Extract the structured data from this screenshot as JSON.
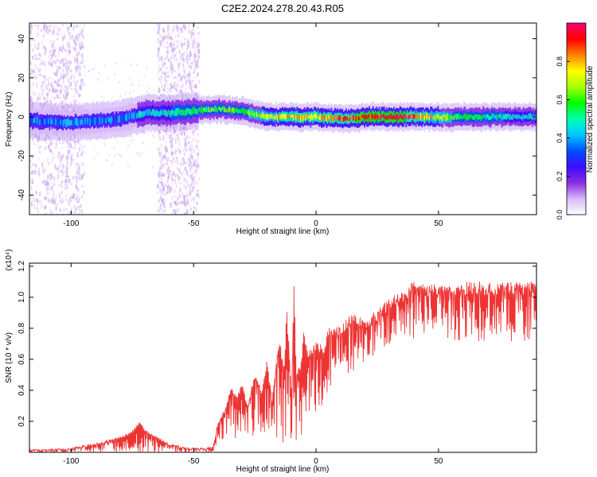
{
  "figure": {
    "title": "C2E2.2024.278.20.43.R05"
  },
  "chart_data": [
    {
      "type": "heatmap",
      "title": "C2E2.2024.278.20.43.R05",
      "xlabel": "Height of straight line (km)",
      "ylabel": "Frequency (Hz)",
      "xlim": [
        -117,
        90
      ],
      "ylim": [
        -50,
        48
      ],
      "xticks": [
        -100,
        -50,
        0,
        50
      ],
      "yticks": [
        -40,
        -20,
        0,
        20,
        40
      ],
      "colorbar": {
        "label": "Normalized spectral amplitude",
        "range": [
          0,
          1
        ],
        "ticks": [
          0.0,
          0.2,
          0.4,
          0.6,
          0.8
        ],
        "colormap": [
          "#ffffff",
          "#d8b8f8",
          "#8a2be2",
          "#3b0bff",
          "#0050ff",
          "#00c8ff",
          "#00ffb0",
          "#00ff00",
          "#a8ff00",
          "#ffff00",
          "#ff8000",
          "#ff0000",
          "#ff0070"
        ]
      },
      "ridge": {
        "x": [
          -117,
          -100,
          -90,
          -80,
          -70,
          -60,
          -50,
          -40,
          -30,
          -20,
          -10,
          0,
          10,
          20,
          30,
          40,
          50,
          60,
          70,
          80,
          90
        ],
        "frequency": [
          -2,
          -3,
          -2,
          -1,
          2,
          2,
          3,
          4,
          3,
          0,
          0,
          0,
          -1,
          0,
          0,
          0,
          0,
          0,
          0,
          0,
          0
        ],
        "amplitude": [
          0.35,
          0.4,
          0.38,
          0.35,
          0.45,
          0.48,
          0.55,
          0.6,
          0.6,
          0.72,
          0.8,
          0.82,
          0.88,
          0.92,
          0.95,
          0.88,
          0.7,
          0.55,
          0.5,
          0.48,
          0.45
        ]
      },
      "noise_bands": [
        [
          -117,
          -95
        ],
        [
          -65,
          -48
        ]
      ]
    },
    {
      "type": "line",
      "xlabel": "Height of straight line (km)",
      "ylabel": "SNR (10 * v/v)",
      "y_multiplier": "(x10⁴)",
      "xlim": [
        -117,
        90
      ],
      "ylim": [
        0,
        1.22
      ],
      "xticks": [
        -100,
        -50,
        0,
        50
      ],
      "yticks": [
        0.2,
        0.4,
        0.6,
        0.8,
        1.0,
        1.2
      ],
      "color": "#ee3333",
      "series": [
        {
          "x": [
            -117,
            -110,
            -100,
            -90,
            -85,
            -80,
            -75,
            -72,
            -70,
            -65,
            -60,
            -55,
            -50,
            -45,
            -42,
            -40,
            -37,
            -35,
            -32,
            -30,
            -28,
            -25,
            -22,
            -20,
            -18,
            -15,
            -13,
            -12,
            -10,
            -9,
            -8,
            -6,
            -5,
            -3,
            0,
            3,
            5,
            10,
            15,
            20,
            25,
            30,
            35,
            40,
            50,
            60,
            70,
            80,
            90
          ],
          "y": [
            0.02,
            0.02,
            0.03,
            0.06,
            0.08,
            0.1,
            0.14,
            0.2,
            0.15,
            0.1,
            0.06,
            0.04,
            0.03,
            0.03,
            0.04,
            0.2,
            0.28,
            0.42,
            0.38,
            0.45,
            0.3,
            0.52,
            0.4,
            0.6,
            0.35,
            0.75,
            0.55,
            0.95,
            0.4,
            1.12,
            0.5,
            0.6,
            0.78,
            0.65,
            0.72,
            0.68,
            0.8,
            0.82,
            0.9,
            0.86,
            0.92,
            1.0,
            1.05,
            1.1,
            1.08,
            1.1,
            1.1,
            1.1,
            1.1
          ]
        }
      ],
      "envelope_lower": [
        0.0,
        0.0,
        0.0,
        0.0,
        0.0,
        0.0,
        0.0,
        0.0,
        0.0,
        0.0,
        0.0,
        0.0,
        0.0,
        0.0,
        0.0,
        0.05,
        0.1,
        0.05,
        0.08,
        0.1,
        0.05,
        0.1,
        0.05,
        0.08,
        0.03,
        0.1,
        0.03,
        0.1,
        0.05,
        0.1,
        0.03,
        0.1,
        0.15,
        0.1,
        0.25,
        0.3,
        0.4,
        0.45,
        0.5,
        0.6,
        0.62,
        0.7,
        0.75,
        0.72,
        0.75,
        0.7,
        0.72,
        0.7,
        0.72
      ]
    }
  ]
}
